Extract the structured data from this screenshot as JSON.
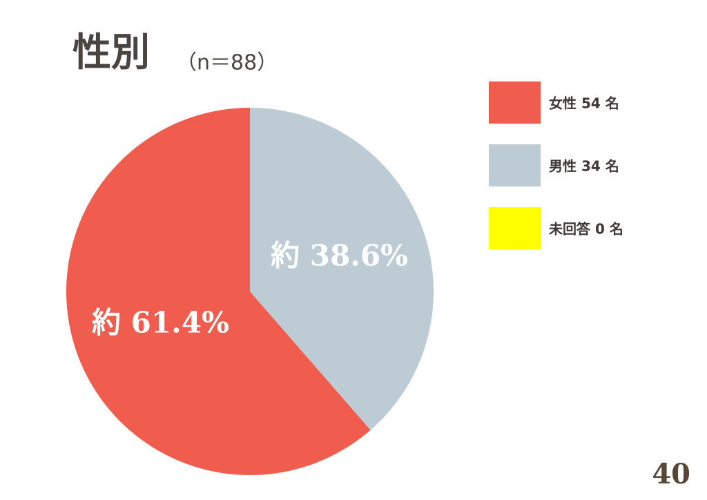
{
  "chart_data": {
    "type": "pie",
    "title": "性別",
    "subtitle": "（n＝88）",
    "categories": [
      "女性 54 名",
      "男性 34 名",
      "未回答 0 名"
    ],
    "values": [
      61.4,
      38.6,
      0
    ],
    "value_labels": [
      "約 61.4%",
      "約 38.6%",
      null
    ],
    "colors": [
      "#f05d4e",
      "#bccbd4",
      "#ffff00"
    ],
    "counterclockwise": true,
    "legend": "right"
  },
  "page_number": "40"
}
